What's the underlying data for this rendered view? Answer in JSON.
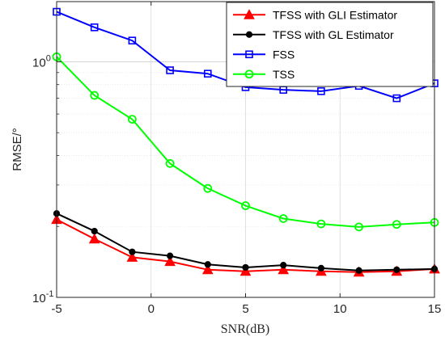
{
  "chart_data": {
    "type": "line",
    "title": "",
    "xlabel": "SNR(dB)",
    "ylabel": "RMSE/°",
    "xlim": [
      -5,
      15
    ],
    "ylim": [
      0.1,
      1.8
    ],
    "yscale": "log",
    "grid": true,
    "legend_position": "top-right",
    "x": [
      -5,
      -3,
      -1,
      1,
      3,
      5,
      7,
      9,
      11,
      13,
      15
    ],
    "x_ticks": [
      "-5",
      "0",
      "5",
      "10",
      "15"
    ],
    "x_tick_values": [
      -5,
      0,
      5,
      10,
      15
    ],
    "y_ticks": [
      "10",
      "10"
    ],
    "y_tick_exponents": [
      "-1",
      "0"
    ],
    "y_tick_values": [
      0.1,
      1
    ],
    "series": [
      {
        "name": "TFSS with GLI Estimator",
        "color": "#ff0000",
        "marker": "triangle",
        "values": [
          0.214,
          0.177,
          0.148,
          0.142,
          0.131,
          0.129,
          0.131,
          0.129,
          0.128,
          0.129,
          0.132
        ]
      },
      {
        "name": "TFSS with GL Estimator",
        "color": "#000000",
        "marker": "circle-filled",
        "values": [
          0.227,
          0.191,
          0.156,
          0.15,
          0.138,
          0.134,
          0.137,
          0.133,
          0.13,
          0.131,
          0.132
        ]
      },
      {
        "name": "FSS",
        "color": "#0000ff",
        "marker": "square",
        "values": [
          1.63,
          1.4,
          1.23,
          0.92,
          0.89,
          0.78,
          0.76,
          0.75,
          0.79,
          0.7,
          0.81
        ]
      },
      {
        "name": "TSS",
        "color": "#00ff00",
        "marker": "circle",
        "values": [
          1.05,
          0.72,
          0.57,
          0.37,
          0.29,
          0.245,
          0.216,
          0.205,
          0.199,
          0.204,
          0.208
        ]
      }
    ]
  }
}
